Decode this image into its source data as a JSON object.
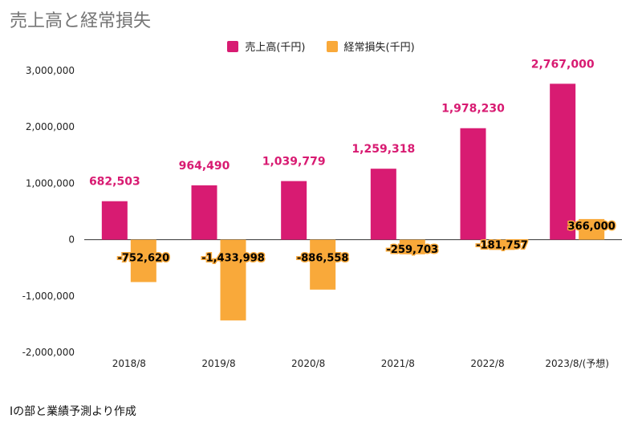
{
  "chart_data": {
    "type": "bar",
    "title": "売上高と経常損失",
    "categories": [
      "2018/8",
      "2019/8",
      "2020/8",
      "2021/8",
      "2022/8",
      "2023/8/(予想)"
    ],
    "series": [
      {
        "name": "売上高(千円)",
        "color": "#d81b72",
        "values": [
          682503,
          964490,
          1039779,
          1259318,
          1978230,
          2767000
        ],
        "labels": [
          "682,503",
          "964,490",
          "1,039,779",
          "1,259,318",
          "1,978,230",
          "2,767,000"
        ]
      },
      {
        "name": "経常損失(千円)",
        "color": "#f9a93a",
        "values": [
          -752620,
          -1433998,
          -886558,
          -259703,
          -181757,
          366000
        ],
        "labels": [
          "-752,620",
          "-1,433,998",
          "-886,558",
          "-259,703",
          "-181,757",
          "366,000"
        ]
      }
    ],
    "yticks": [
      3000000,
      2000000,
      1000000,
      0,
      -1000000,
      -2000000
    ],
    "ytick_labels": [
      "3,000,000",
      "2,000,000",
      "1,000,000",
      "0",
      "-1,000,000",
      "-2,000,000"
    ],
    "ylim": [
      -2000000,
      3000000
    ],
    "legend": "top-center",
    "grid": false
  },
  "source_note": "Iの部と業績予測より作成"
}
